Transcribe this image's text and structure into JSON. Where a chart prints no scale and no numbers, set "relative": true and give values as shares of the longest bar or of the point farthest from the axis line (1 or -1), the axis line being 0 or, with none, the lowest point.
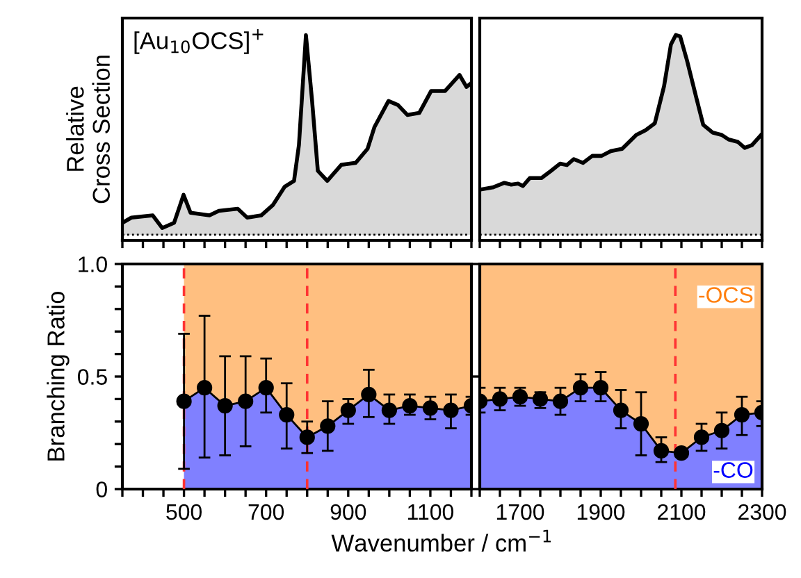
{
  "chart_data": [
    {
      "type": "area",
      "ylabel": "Relative\nCross Section",
      "annotations": [
        "[Au$_{10}$OCS]$^{+}$"
      ],
      "relative": true,
      "tick_labels": false,
      "legend": false,
      "grid": false,
      "xlim": [
        350,
        1200
      ],
      "xticks": [
        {
          "value": 350,
          "label": null
        },
        {
          "value": 400,
          "label": null
        },
        {
          "value": 450,
          "label": null
        },
        {
          "value": 500,
          "label": null
        },
        {
          "value": 550,
          "label": null
        },
        {
          "value": 600,
          "label": null
        },
        {
          "value": 650,
          "label": null
        },
        {
          "value": 700,
          "label": null
        },
        {
          "value": 750,
          "label": null
        },
        {
          "value": 800,
          "label": null
        },
        {
          "value": 850,
          "label": null
        },
        {
          "value": 900,
          "label": null
        },
        {
          "value": 950,
          "label": null
        },
        {
          "value": 1000,
          "label": null
        },
        {
          "value": 1050,
          "label": null
        },
        {
          "value": 1100,
          "label": null
        },
        {
          "value": 1150,
          "label": null
        },
        {
          "value": 1200,
          "label": null
        }
      ],
      "series": [
        {
          "color": "#d9d9d9",
          "x": [
            350,
            372,
            424,
            447,
            476,
            499,
            516,
            562,
            585,
            631,
            654,
            688,
            717,
            745,
            768,
            780,
            797,
            812,
            826,
            849,
            883,
            918,
            947,
            964,
            998,
            1021,
            1044,
            1073,
            1102,
            1136,
            1171,
            1188,
            1200
          ],
          "values": [
            0.06,
            0.086,
            0.097,
            0.034,
            0.06,
            0.2,
            0.11,
            0.097,
            0.12,
            0.13,
            0.086,
            0.097,
            0.15,
            0.24,
            0.27,
            0.45,
            1.0,
            0.67,
            0.32,
            0.27,
            0.35,
            0.36,
            0.43,
            0.54,
            0.67,
            0.65,
            0.6,
            0.61,
            0.72,
            0.72,
            0.8,
            0.74,
            0.76
          ]
        }
      ]
    },
    {
      "type": "area",
      "relative": true,
      "tick_labels": false,
      "legend": false,
      "grid": false,
      "xlim": [
        1600,
        2300
      ],
      "xticks": [
        {
          "value": 1600,
          "label": null
        },
        {
          "value": 1650,
          "label": null
        },
        {
          "value": 1700,
          "label": null
        },
        {
          "value": 1750,
          "label": null
        },
        {
          "value": 1800,
          "label": null
        },
        {
          "value": 1850,
          "label": null
        },
        {
          "value": 1900,
          "label": null
        },
        {
          "value": 1950,
          "label": null
        },
        {
          "value": 2000,
          "label": null
        },
        {
          "value": 2050,
          "label": null
        },
        {
          "value": 2100,
          "label": null
        },
        {
          "value": 2150,
          "label": null
        },
        {
          "value": 2200,
          "label": null
        },
        {
          "value": 2250,
          "label": null
        },
        {
          "value": 2300,
          "label": null
        }
      ],
      "series": [
        {
          "color": "#d9d9d9",
          "x": [
            1600,
            1632,
            1661,
            1678,
            1695,
            1707,
            1724,
            1753,
            1776,
            1799,
            1816,
            1833,
            1856,
            1879,
            1902,
            1925,
            1953,
            1988,
            2011,
            2034,
            2057,
            2074,
            2086,
            2097,
            2114,
            2137,
            2154,
            2177,
            2200,
            2217,
            2240,
            2257,
            2275,
            2300
          ],
          "values": [
            0.226,
            0.237,
            0.26,
            0.251,
            0.256,
            0.244,
            0.284,
            0.284,
            0.319,
            0.356,
            0.349,
            0.379,
            0.36,
            0.395,
            0.395,
            0.419,
            0.43,
            0.5,
            0.523,
            0.558,
            0.744,
            0.953,
            1.0,
            0.993,
            0.872,
            0.686,
            0.551,
            0.512,
            0.5,
            0.477,
            0.465,
            0.435,
            0.449,
            0.505
          ]
        }
      ]
    },
    {
      "type": "area",
      "ylabel": "Branching Ratio",
      "xlabel": "Wavenumber / cm$^{−1}$",
      "stacked": true,
      "legend": false,
      "grid": false,
      "line_style": "solid",
      "xlim": [
        350,
        1200
      ],
      "xticks": [
        {
          "value": 350,
          "label": null
        },
        {
          "value": 400,
          "label": null
        },
        {
          "value": 450,
          "label": null
        },
        500,
        {
          "value": 550,
          "label": null
        },
        {
          "value": 600,
          "label": null
        },
        {
          "value": 650,
          "label": null
        },
        700,
        {
          "value": 750,
          "label": null
        },
        {
          "value": 800,
          "label": null
        },
        {
          "value": 850,
          "label": null
        },
        900,
        {
          "value": 950,
          "label": null
        },
        {
          "value": 1000,
          "label": null
        },
        {
          "value": 1050,
          "label": null
        },
        1100,
        {
          "value": 1150,
          "label": null
        },
        {
          "value": 1200,
          "label": null
        }
      ],
      "ylim": [
        0,
        1.0
      ],
      "yticks": [
        0,
        {
          "value": 0.1,
          "label": null
        },
        {
          "value": 0.2,
          "label": null
        },
        {
          "value": 0.3,
          "label": null
        },
        {
          "value": 0.4,
          "label": null
        },
        0.5,
        {
          "value": 0.6,
          "label": null
        },
        {
          "value": 0.7,
          "label": null
        },
        {
          "value": 0.8,
          "label": null
        },
        {
          "value": 0.9,
          "label": null
        },
        {
          "value": 1.0,
          "label": "1.0"
        }
      ],
      "ref_lines": [
        {
          "axis": "x",
          "value": 500,
          "label": null,
          "color": "#ff3333",
          "line_style": "dashed"
        },
        {
          "axis": "x",
          "value": 800,
          "label": null,
          "color": "#ff3333",
          "line_style": "dashed"
        }
      ],
      "x": [
        500,
        550,
        600,
        650,
        700,
        750,
        800,
        850,
        900,
        950,
        1000,
        1050,
        1100,
        1150,
        1200
      ],
      "series": [
        {
          "type": "area",
          "marker": "circle",
          "color": "#8080ff",
          "values": [
            0.39,
            0.45,
            0.37,
            0.39,
            0.45,
            0.33,
            0.23,
            0.28,
            0.35,
            0.42,
            0.35,
            0.37,
            0.36,
            0.35,
            0.37
          ],
          "errors": [
            [
              0.09,
              0.69
            ],
            [
              0.14,
              0.77
            ],
            [
              0.15,
              0.59
            ],
            [
              0.19,
              0.59
            ],
            [
              0.34,
              0.58
            ],
            [
              0.18,
              0.47
            ],
            [
              0.16,
              0.3
            ],
            [
              0.17,
              0.39
            ],
            [
              0.29,
              0.4
            ],
            [
              0.32,
              0.53
            ],
            [
              0.29,
              0.42
            ],
            [
              0.33,
              0.42
            ],
            [
              0.31,
              0.41
            ],
            [
              0.27,
              0.42
            ],
            [
              0.33,
              0.41
            ]
          ]
        },
        {
          "type": "area",
          "color": "#ffbf80",
          "values": [
            0.61,
            0.55,
            0.63,
            0.61,
            0.55,
            0.67,
            0.77,
            0.72,
            0.65,
            0.58,
            0.65,
            0.63,
            0.64,
            0.65,
            0.63
          ]
        }
      ]
    },
    {
      "type": "area",
      "stacked": true,
      "legend": false,
      "grid": false,
      "line_style": "solid",
      "tick_labels": "x",
      "xlim": [
        1600,
        2300
      ],
      "xticks": [
        {
          "value": 1600,
          "label": null
        },
        {
          "value": 1650,
          "label": null
        },
        1700,
        {
          "value": 1750,
          "label": null
        },
        {
          "value": 1800,
          "label": null
        },
        {
          "value": 1850,
          "label": null
        },
        1900,
        {
          "value": 1950,
          "label": null
        },
        {
          "value": 2000,
          "label": null
        },
        {
          "value": 2050,
          "label": null
        },
        2100,
        {
          "value": 2150,
          "label": null
        },
        {
          "value": 2200,
          "label": null
        },
        {
          "value": 2250,
          "label": null
        },
        2300
      ],
      "ylim": [
        0,
        1.0
      ],
      "yticks": [
        {
          "value": 0,
          "label": null
        },
        {
          "value": 0.5,
          "label": null
        },
        {
          "value": 1.0,
          "label": null
        }
      ],
      "ref_lines": [
        {
          "axis": "x",
          "value": 2085,
          "label": null,
          "color": "#ff3333",
          "line_style": "dashed"
        }
      ],
      "x": [
        1600,
        1650,
        1700,
        1750,
        1800,
        1850,
        1900,
        1950,
        2000,
        2050,
        2100,
        2150,
        2200,
        2250,
        2300
      ],
      "series": [
        {
          "type": "area",
          "name": "-CO",
          "marker": "circle",
          "color": "#8080ff",
          "values": [
            0.39,
            0.4,
            0.41,
            0.4,
            0.39,
            0.45,
            0.45,
            0.35,
            0.29,
            0.17,
            0.16,
            0.23,
            0.26,
            0.33,
            0.34
          ],
          "errors": [
            [
              0.34,
              0.45
            ],
            [
              0.35,
              0.45
            ],
            [
              0.37,
              0.45
            ],
            [
              0.36,
              0.43
            ],
            [
              0.33,
              0.45
            ],
            [
              0.39,
              0.51
            ],
            [
              0.39,
              0.52
            ],
            [
              0.27,
              0.44
            ],
            [
              0.15,
              0.43
            ],
            [
              0.12,
              0.23
            ],
            null,
            [
              0.17,
              0.29
            ],
            [
              0.18,
              0.34
            ],
            [
              0.24,
              0.41
            ],
            [
              0.28,
              0.39
            ]
          ]
        },
        {
          "type": "area",
          "name": "-OCS",
          "color": "#ffbf80",
          "values": [
            0.61,
            0.6,
            0.59,
            0.6,
            0.61,
            0.55,
            0.55,
            0.65,
            0.71,
            0.83,
            0.84,
            0.77,
            0.74,
            0.67,
            0.66
          ]
        }
      ]
    }
  ]
}
